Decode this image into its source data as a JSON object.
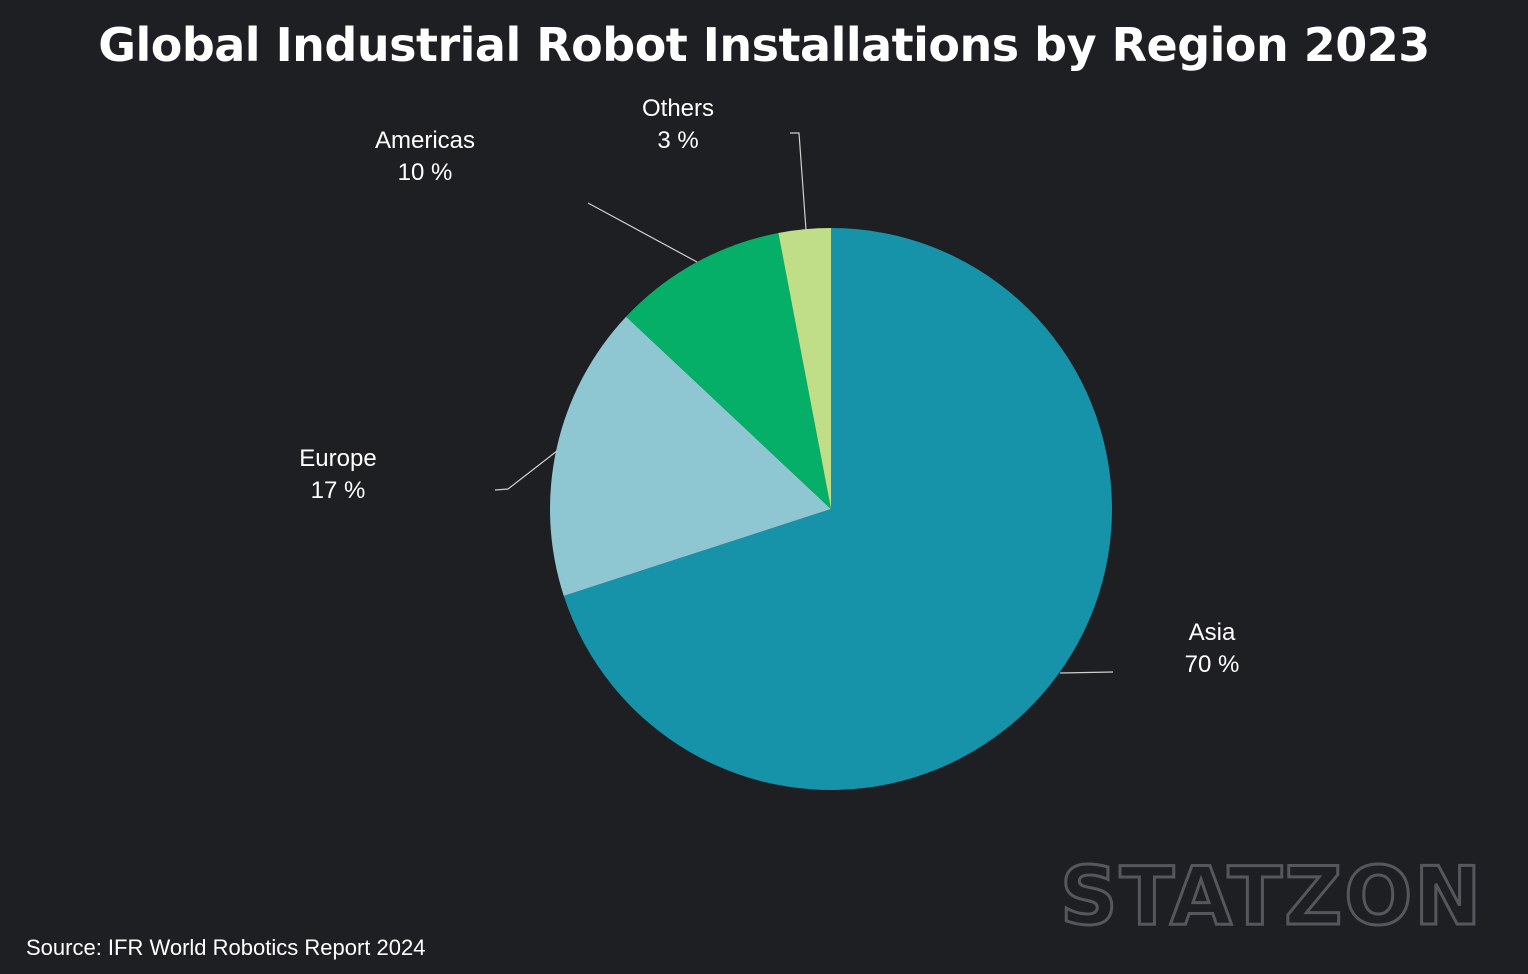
{
  "chart_data": {
    "type": "pie",
    "title": "Global Industrial Robot Installations by Region 2023",
    "slices": [
      {
        "label": "Asia",
        "value": 70,
        "value_label": "70 %",
        "color": "#1793a9"
      },
      {
        "label": "Europe",
        "value": 17,
        "value_label": "17 %",
        "color": "#8ec6d2"
      },
      {
        "label": "Americas",
        "value": 10,
        "value_label": "10 %",
        "color": "#06af68"
      },
      {
        "label": "Others",
        "value": 3,
        "value_label": "3 %",
        "color": "#c0dd88"
      }
    ],
    "start_angle": "12 o'clock",
    "direction": "clockwise",
    "legend": "none",
    "labels": "outside with leader lines"
  },
  "footer": {
    "source": "Source: IFR World Robotics Report 2024"
  },
  "watermark": {
    "text": "STATZON"
  },
  "colors": {
    "background": "#1e1f22",
    "text": "#ffffff"
  }
}
